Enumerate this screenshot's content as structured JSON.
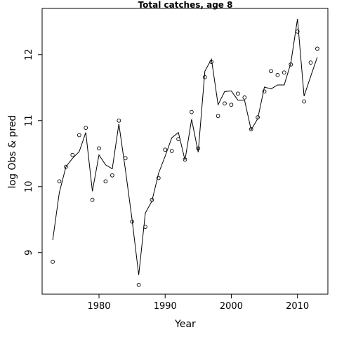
{
  "chart_data": {
    "type": "line",
    "title": "Total catches, age 8",
    "xlabel": "Year",
    "ylabel": "log Obs & pred",
    "xlim": [
      1971.4,
      2014.6
    ],
    "ylim": [
      8.37,
      12.7
    ],
    "x_ticks": [
      1980,
      1990,
      2000,
      2010
    ],
    "y_ticks": [
      9,
      10,
      11,
      12
    ],
    "grid": false,
    "series": [
      {
        "style": "points",
        "marker": "open-circle",
        "x": [
          1973,
          1974,
          1975,
          1976,
          1977,
          1978,
          1979,
          1980,
          1981,
          1982,
          1983,
          1984,
          1985,
          1986,
          1987,
          1988,
          1989,
          1990,
          1991,
          1992,
          1993,
          1994,
          1995,
          1996,
          1997,
          1998,
          1999,
          2000,
          2001,
          2002,
          2003,
          2004,
          2005,
          2006,
          2007,
          2008,
          2009,
          2010,
          2011,
          2012,
          2013
        ],
        "values": [
          8.86,
          10.08,
          10.3,
          10.48,
          10.78,
          10.89,
          9.8,
          10.58,
          10.08,
          10.17,
          11.0,
          10.43,
          9.47,
          8.51,
          9.39,
          9.8,
          10.13,
          10.56,
          10.54,
          10.72,
          10.41,
          11.13,
          10.58,
          11.66,
          11.89,
          11.07,
          11.26,
          11.24,
          11.41,
          11.35,
          10.87,
          11.05,
          11.44,
          11.75,
          11.69,
          11.73,
          11.85,
          12.35,
          11.29,
          11.88,
          12.09
        ]
      },
      {
        "style": "line",
        "x": [
          1973,
          1974,
          1975,
          1976,
          1977,
          1978,
          1979,
          1980,
          1981,
          1982,
          1983,
          1984,
          1985,
          1986,
          1987,
          1988,
          1989,
          1990,
          1991,
          1992,
          1993,
          1994,
          1995,
          1996,
          1997,
          1998,
          1999,
          2000,
          2001,
          2002,
          2003,
          2004,
          2005,
          2006,
          2007,
          2008,
          2009,
          2010,
          2011,
          2012,
          2013
        ],
        "values": [
          9.19,
          9.91,
          10.3,
          10.43,
          10.53,
          10.82,
          9.93,
          10.48,
          10.33,
          10.27,
          10.95,
          10.25,
          9.5,
          8.66,
          9.6,
          9.78,
          10.2,
          10.46,
          10.74,
          10.82,
          10.4,
          11.02,
          10.52,
          11.75,
          11.93,
          11.24,
          11.44,
          11.45,
          11.31,
          11.31,
          10.86,
          11.03,
          11.51,
          11.48,
          11.54,
          11.54,
          11.87,
          12.54,
          11.37,
          11.67,
          11.96
        ]
      }
    ]
  }
}
